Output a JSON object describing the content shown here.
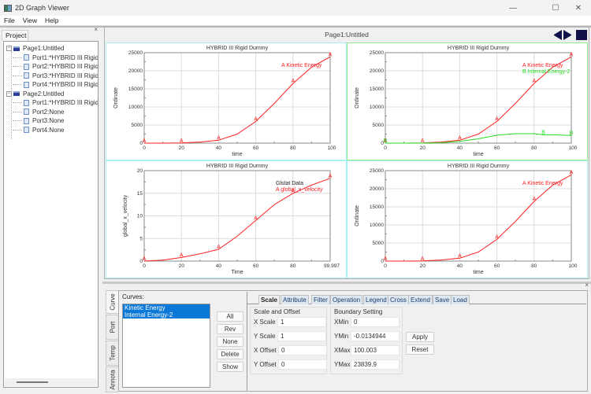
{
  "window": {
    "title": "2D Graph Viewer",
    "controls": {
      "minimize": "—",
      "maximize": "☐",
      "close": "✕"
    }
  },
  "menu": {
    "items": [
      "File",
      "View",
      "Help"
    ]
  },
  "project_panel": {
    "tab_label": "Project",
    "close": "×",
    "tree": [
      {
        "label": "Page1:Untitled",
        "expanded": "−",
        "children": [
          "Port1:*HYBRID III Rigid",
          "Port2:*HYBRID III Rigid",
          "Port3:*HYBRID III Rigid",
          "Port4:*HYBRID III Rigid"
        ]
      },
      {
        "label": "Page2:Untitled",
        "expanded": "−",
        "children": [
          "Port1:*HYBRID III Rigid",
          "Port2:None",
          "Port3:None",
          "Port4:None"
        ]
      }
    ]
  },
  "graph_area": {
    "page_title": "Page1:Untitled",
    "nav": {
      "prev": "previous-page",
      "next": "next-page",
      "stop": "stop"
    }
  },
  "chart_data": [
    {
      "type": "line",
      "title": "HYBRID III Rigid Dummy",
      "xlabel": "time",
      "ylabel": "Ordinate",
      "xlim": [
        0,
        100
      ],
      "ylim": [
        0,
        25000
      ],
      "xticks": [
        "0",
        "20",
        "40",
        "60",
        "80",
        "100"
      ],
      "yticks": [
        "0",
        "5000",
        "10000",
        "15000",
        "20000",
        "25000"
      ],
      "grid": true,
      "legend": [
        {
          "marker": "A",
          "label": "Kinetic Energy",
          "color": "#ff2020"
        }
      ],
      "series": [
        {
          "name": "Kinetic Energy",
          "marker": "A",
          "color": "#ff2020",
          "x": [
            0,
            10,
            20,
            30,
            40,
            50,
            60,
            70,
            80,
            90,
            100
          ],
          "y": [
            0,
            0,
            50,
            300,
            800,
            2500,
            6000,
            11000,
            16500,
            21000,
            23840
          ]
        }
      ],
      "active": false
    },
    {
      "type": "line",
      "title": "HYBRID III Rigid Dummy",
      "xlabel": "time",
      "ylabel": "Ordinate",
      "xlim": [
        0,
        100
      ],
      "ylim": [
        0,
        25000
      ],
      "xticks": [
        "0",
        "20",
        "40",
        "60",
        "80",
        "100"
      ],
      "yticks": [
        "0",
        "5000",
        "10000",
        "15000",
        "20000",
        "25000"
      ],
      "grid": true,
      "legend": [
        {
          "marker": "A",
          "label": "Kinetic Energy",
          "color": "#ff2020"
        },
        {
          "marker": "B",
          "label": "Internal Energy-2",
          "color": "#22dd22"
        }
      ],
      "series": [
        {
          "name": "Kinetic Energy",
          "marker": "A",
          "color": "#ff2020",
          "x": [
            0,
            10,
            20,
            30,
            40,
            50,
            60,
            70,
            80,
            90,
            100
          ],
          "y": [
            0,
            0,
            50,
            300,
            800,
            2500,
            6000,
            11000,
            16500,
            21000,
            23840
          ]
        },
        {
          "name": "Internal Energy-2",
          "marker": "B",
          "color": "#22dd22",
          "x": [
            0,
            10,
            20,
            30,
            40,
            50,
            60,
            70,
            80,
            85,
            90,
            100
          ],
          "y": [
            0,
            0,
            0,
            100,
            500,
            1200,
            2200,
            2600,
            2600,
            2300,
            2300,
            2100
          ]
        }
      ],
      "active": true
    },
    {
      "type": "line",
      "title": "HYBRID III Rigid Dummy",
      "xlabel": "Time",
      "ylabel": "global_x_velocity",
      "xlim": [
        0,
        99.997
      ],
      "ylim": [
        0,
        20
      ],
      "xticks": [
        "0",
        "20",
        "40",
        "60",
        "80",
        "99.997"
      ],
      "yticks": [
        "0",
        "5",
        "10",
        "15",
        "20"
      ],
      "grid": true,
      "legend": [
        {
          "marker": "",
          "label": "Glstat Data",
          "color": "#222222"
        },
        {
          "marker": "A",
          "label": "global_x_velocity",
          "color": "#ff2020"
        }
      ],
      "series": [
        {
          "name": "global_x_velocity",
          "marker": "A",
          "color": "#ff2020",
          "x": [
            0,
            10,
            20,
            30,
            40,
            50,
            60,
            70,
            80,
            90,
            99.997
          ],
          "y": [
            0,
            0.2,
            0.8,
            1.6,
            2.6,
            5.5,
            9.0,
            12.5,
            15.0,
            16.8,
            18.3
          ]
        }
      ],
      "active": false
    },
    {
      "type": "line",
      "title": "HYBRID III Rigid Dummy",
      "xlabel": "time",
      "ylabel": "Ordinate",
      "xlim": [
        0,
        100
      ],
      "ylim": [
        0,
        25000
      ],
      "xticks": [
        "0",
        "20",
        "40",
        "60",
        "80",
        "100"
      ],
      "yticks": [
        "0",
        "5000",
        "10000",
        "15000",
        "20000",
        "25000"
      ],
      "grid": true,
      "legend": [
        {
          "marker": "A",
          "label": "Kinetic Energy",
          "color": "#ff2020"
        }
      ],
      "series": [
        {
          "name": "Kinetic Energy",
          "marker": "A",
          "color": "#ff2020",
          "x": [
            0,
            10,
            20,
            30,
            40,
            50,
            60,
            70,
            80,
            90,
            100
          ],
          "y": [
            0,
            0,
            50,
            300,
            800,
            2500,
            6000,
            11000,
            16500,
            21000,
            23840
          ]
        }
      ],
      "active": false
    }
  ],
  "bottom_panel": {
    "close": "×",
    "side_tabs": [
      "Curve",
      "Port",
      "Temp",
      "Annota"
    ],
    "selected_side_tab": "Curve",
    "curves_label": "Curves:",
    "curves": [
      "Kinetic Energy",
      "Internal Energy-2"
    ],
    "buttons": [
      "All",
      "Rev",
      "None",
      "Delete",
      "Show"
    ],
    "tabs": [
      "Scale",
      "Attribute",
      "Filter",
      "Operation",
      "Legend",
      "Cross",
      "Extend",
      "Save",
      "Load"
    ],
    "selected_tab": "Scale",
    "scale_offset": {
      "label": "Scale and Offset",
      "fields": [
        {
          "label": "X Scale",
          "value": "1"
        },
        {
          "label": "Y Scale",
          "value": "1"
        },
        {
          "label": "X Offset",
          "value": "0"
        },
        {
          "label": "Y Offset",
          "value": "0"
        }
      ]
    },
    "boundary": {
      "label": "Boundary Setting",
      "fields": [
        {
          "label": "XMin",
          "value": "0"
        },
        {
          "label": "YMin",
          "value": "-0.0134944"
        },
        {
          "label": "XMax",
          "value": "100.003"
        },
        {
          "label": "YMax",
          "value": "23839.9"
        }
      ]
    },
    "apply_label": "Apply",
    "reset_label": "Reset"
  }
}
